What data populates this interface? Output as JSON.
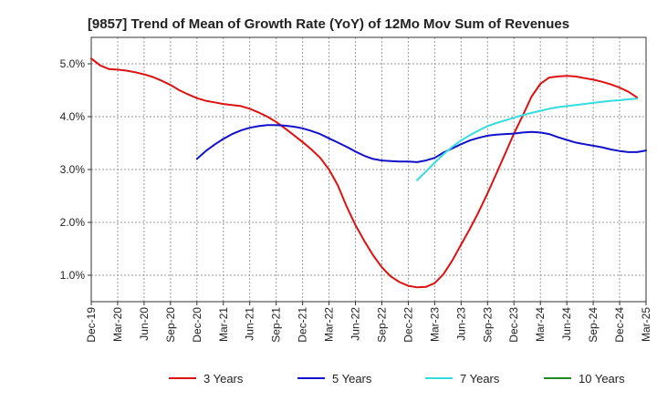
{
  "chart_data": {
    "type": "line",
    "title": "[9857]  Trend of Mean of Growth Rate (YoY) of 12Mo Mov Sum of Revenues",
    "xlabel": "",
    "ylabel": "",
    "ylim": [
      0.5,
      5.5
    ],
    "y_ticks": [
      1.0,
      2.0,
      3.0,
      4.0,
      5.0
    ],
    "y_tick_labels": [
      "1.0%",
      "2.0%",
      "3.0%",
      "4.0%",
      "5.0%"
    ],
    "x_tick_labels": [
      "Dec-19",
      "Mar-20",
      "Jun-20",
      "Sep-20",
      "Dec-20",
      "Mar-21",
      "Jun-21",
      "Sep-21",
      "Dec-21",
      "Mar-22",
      "Jun-22",
      "Sep-22",
      "Dec-22",
      "Mar-23",
      "Jun-23",
      "Sep-23",
      "Dec-23",
      "Mar-24",
      "Jun-24",
      "Sep-24",
      "Dec-24",
      "Mar-25"
    ],
    "x_range_months": [
      0,
      63
    ],
    "grid": true,
    "legend_position": "bottom",
    "series": [
      {
        "name": "3 Years",
        "color": "#dd1111",
        "start_month": 0,
        "values": [
          5.1,
          4.97,
          4.9,
          4.89,
          4.87,
          4.84,
          4.8,
          4.75,
          4.68,
          4.6,
          4.5,
          4.42,
          4.35,
          4.3,
          4.27,
          4.24,
          4.22,
          4.2,
          4.15,
          4.08,
          4.0,
          3.9,
          3.78,
          3.65,
          3.52,
          3.38,
          3.22,
          3.0,
          2.7,
          2.3,
          1.95,
          1.65,
          1.38,
          1.15,
          0.98,
          0.87,
          0.8,
          0.77,
          0.78,
          0.85,
          1.02,
          1.28,
          1.58,
          1.88,
          2.2,
          2.55,
          2.92,
          3.3,
          3.68,
          4.02,
          4.38,
          4.62,
          4.74,
          4.76,
          4.77,
          4.76,
          4.73,
          4.7,
          4.66,
          4.61,
          4.55,
          4.47,
          4.36
        ]
      },
      {
        "name": "5 Years",
        "color": "#1111cc",
        "start_month": 12,
        "values": [
          3.2,
          3.35,
          3.47,
          3.58,
          3.67,
          3.74,
          3.79,
          3.82,
          3.84,
          3.84,
          3.83,
          3.81,
          3.78,
          3.73,
          3.67,
          3.59,
          3.51,
          3.43,
          3.34,
          3.26,
          3.2,
          3.17,
          3.16,
          3.15,
          3.15,
          3.14,
          3.17,
          3.22,
          3.32,
          3.4,
          3.48,
          3.55,
          3.6,
          3.64,
          3.66,
          3.67,
          3.68,
          3.7,
          3.71,
          3.7,
          3.67,
          3.61,
          3.56,
          3.51,
          3.48,
          3.45,
          3.42,
          3.38,
          3.35,
          3.33,
          3.33,
          3.36
        ]
      },
      {
        "name": "7 Years",
        "color": "#33dddd",
        "start_month": 37,
        "values": [
          2.8,
          2.96,
          3.13,
          3.29,
          3.43,
          3.55,
          3.65,
          3.74,
          3.82,
          3.88,
          3.93,
          3.98,
          4.03,
          4.07,
          4.11,
          4.15,
          4.18,
          4.2,
          4.22,
          4.24,
          4.26,
          4.28,
          4.3,
          4.31,
          4.33,
          4.34
        ]
      },
      {
        "name": "10 Years",
        "color": "#228822",
        "start_month": 0,
        "values": []
      }
    ]
  }
}
